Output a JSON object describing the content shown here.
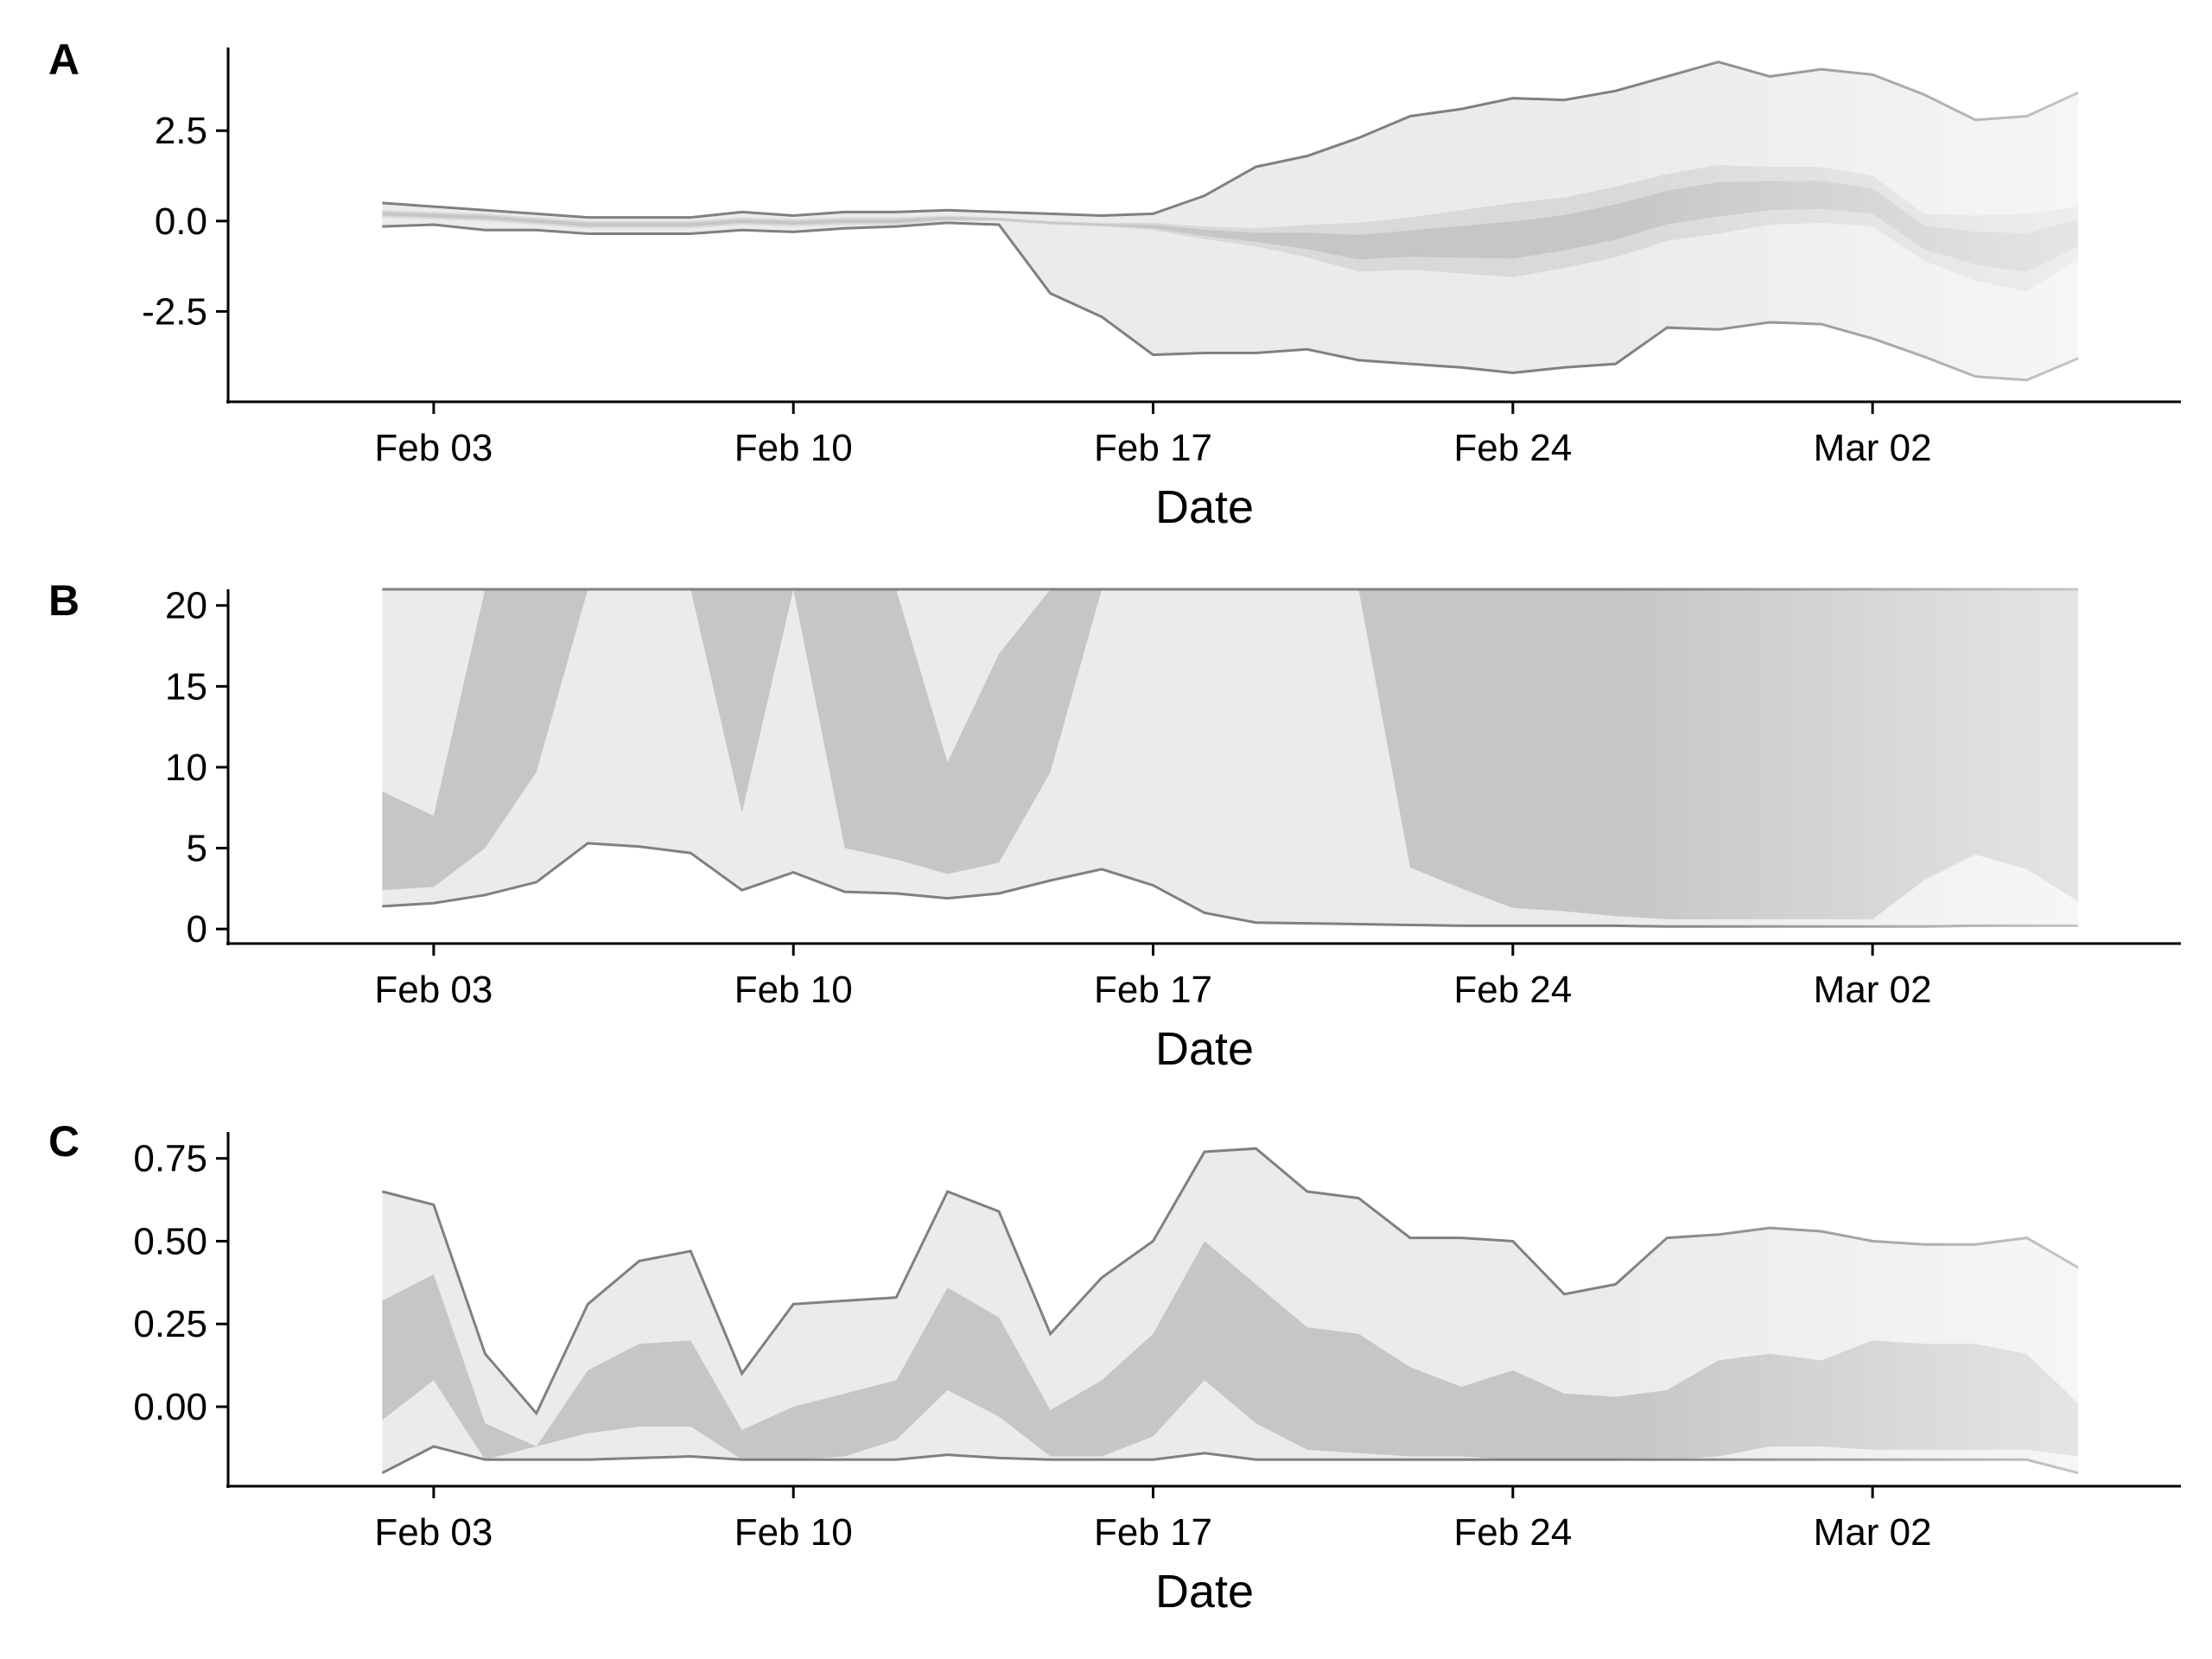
{
  "chart_data": [
    {
      "panel": "A",
      "type": "area",
      "xlabel": "Date",
      "ylabel": "",
      "x_ticks": [
        "Feb 03",
        "Feb 10",
        "Feb 17",
        "Feb 24",
        "Mar 02"
      ],
      "y_ticks": [
        "2.5",
        "0.0",
        "-2.5"
      ],
      "y_tick_values": [
        2.5,
        0.0,
        -2.5
      ],
      "ylim": [
        -5.0,
        4.8
      ],
      "xlim": [
        "2020-01-30",
        "2020-03-08"
      ],
      "grid": false,
      "colors": {
        "outer_band": "#ebebeb",
        "middle_band": "#d9d9d9",
        "inner_band": "#c6c6c6",
        "bound_line": "#808080"
      },
      "series": {
        "dates": [
          "2020-02-02",
          "2020-02-03",
          "2020-02-04",
          "2020-02-05",
          "2020-02-06",
          "2020-02-07",
          "2020-02-08",
          "2020-02-09",
          "2020-02-10",
          "2020-02-11",
          "2020-02-12",
          "2020-02-13",
          "2020-02-14",
          "2020-02-15",
          "2020-02-16",
          "2020-02-17",
          "2020-02-18",
          "2020-02-19",
          "2020-02-20",
          "2020-02-21",
          "2020-02-22",
          "2020-02-23",
          "2020-02-24",
          "2020-02-25",
          "2020-02-26",
          "2020-02-27",
          "2020-02-28",
          "2020-02-29",
          "2020-03-01",
          "2020-03-02",
          "2020-03-03",
          "2020-03-04",
          "2020-03-05",
          "2020-03-06"
        ],
        "upper": [
          0.5,
          0.4,
          0.3,
          0.2,
          0.1,
          0.1,
          0.1,
          0.25,
          0.15,
          0.25,
          0.25,
          0.3,
          0.25,
          0.2,
          0.15,
          0.2,
          0.7,
          1.5,
          1.8,
          2.3,
          2.9,
          3.1,
          3.4,
          3.35,
          3.6,
          4.0,
          4.4,
          4.0,
          4.2,
          4.05,
          3.5,
          2.8,
          2.9,
          3.55
        ],
        "inner_upper": [
          0.3,
          0.25,
          0.2,
          0.1,
          0.0,
          0.0,
          0.0,
          0.1,
          0.05,
          0.1,
          0.1,
          0.15,
          0.1,
          0.0,
          -0.05,
          -0.05,
          -0.15,
          -0.2,
          -0.1,
          -0.05,
          0.1,
          0.3,
          0.5,
          0.65,
          0.95,
          1.3,
          1.55,
          1.5,
          1.5,
          1.25,
          0.2,
          0.15,
          0.2,
          0.4
        ],
        "inner_lower": [
          0.1,
          0.05,
          0.0,
          -0.1,
          -0.2,
          -0.2,
          -0.2,
          -0.1,
          -0.15,
          -0.1,
          -0.1,
          0.0,
          0.0,
          -0.1,
          -0.15,
          -0.25,
          -0.5,
          -0.7,
          -1.0,
          -1.4,
          -1.35,
          -1.45,
          -1.55,
          -1.3,
          -1.0,
          -0.55,
          -0.35,
          -0.1,
          -0.05,
          -0.15,
          -1.1,
          -1.65,
          -1.95,
          -1.05
        ],
        "lower": [
          -0.15,
          -0.1,
          -0.25,
          -0.25,
          -0.35,
          -0.35,
          -0.35,
          -0.25,
          -0.3,
          -0.2,
          -0.15,
          -0.05,
          -0.1,
          -2.0,
          -2.65,
          -3.7,
          -3.65,
          -3.65,
          -3.55,
          -3.85,
          -3.95,
          -4.05,
          -4.2,
          -4.05,
          -3.95,
          -2.95,
          -3.0,
          -2.8,
          -2.85,
          -3.25,
          -3.75,
          -4.3,
          -4.4,
          -3.8
        ]
      }
    },
    {
      "panel": "B",
      "type": "area",
      "xlabel": "Date",
      "ylabel": "",
      "x_ticks": [
        "Feb 03",
        "Feb 10",
        "Feb 17",
        "Feb 24",
        "Mar 02"
      ],
      "y_ticks": [
        "20",
        "15",
        "10",
        "5",
        "0"
      ],
      "y_tick_values": [
        20,
        15,
        10,
        5,
        0
      ],
      "ylim": [
        -0.9,
        21
      ],
      "xlim": [
        "2020-01-30",
        "2020-03-08"
      ],
      "grid": false,
      "colors": {
        "outer_band": "#ebebeb",
        "inner_band": "#c6c6c6",
        "bound_line": "#808080"
      },
      "series": {
        "dates": [
          "2020-02-02",
          "2020-02-03",
          "2020-02-04",
          "2020-02-05",
          "2020-02-06",
          "2020-02-07",
          "2020-02-08",
          "2020-02-09",
          "2020-02-10",
          "2020-02-11",
          "2020-02-12",
          "2020-02-13",
          "2020-02-14",
          "2020-02-15",
          "2020-02-16",
          "2020-02-17",
          "2020-02-18",
          "2020-02-19",
          "2020-02-20",
          "2020-02-21",
          "2020-02-22",
          "2020-02-23",
          "2020-02-24",
          "2020-02-25",
          "2020-02-26",
          "2020-02-27",
          "2020-02-28",
          "2020-02-29",
          "2020-03-01",
          "2020-03-02",
          "2020-03-03",
          "2020-03-04",
          "2020-03-05",
          "2020-03-06"
        ],
        "upper": [
          21,
          21,
          21,
          21,
          21,
          21,
          21,
          21,
          21,
          21,
          21,
          21,
          21,
          21,
          21,
          21,
          21,
          21,
          21,
          21,
          21,
          21,
          21,
          21,
          21,
          21,
          21,
          21,
          21,
          21,
          21,
          21,
          21,
          21
        ],
        "inner_upper": [
          8.5,
          7.0,
          21,
          21,
          21,
          21,
          21,
          7.2,
          21,
          21,
          21,
          10.3,
          17.0,
          21,
          21,
          21,
          21,
          21,
          21,
          21,
          21,
          21,
          21,
          21,
          21,
          21,
          21,
          21,
          21,
          21,
          21,
          21,
          21,
          21
        ],
        "inner_lower": [
          2.4,
          2.6,
          5.0,
          9.7,
          21,
          21,
          21,
          21,
          21,
          5.0,
          4.3,
          3.4,
          4.1,
          9.7,
          21,
          21,
          21,
          21,
          21,
          21,
          3.8,
          2.5,
          1.3,
          1.1,
          0.8,
          0.6,
          0.6,
          0.6,
          0.6,
          0.6,
          3.0,
          4.6,
          3.7,
          1.7
        ],
        "lower": [
          1.4,
          1.6,
          2.1,
          2.9,
          5.3,
          5.1,
          4.7,
          2.4,
          3.5,
          2.3,
          2.2,
          1.9,
          2.2,
          3.0,
          3.7,
          2.7,
          1.0,
          0.4,
          0.35,
          0.3,
          0.25,
          0.2,
          0.2,
          0.2,
          0.2,
          0.15,
          0.15,
          0.15,
          0.15,
          0.15,
          0.15,
          0.2,
          0.2,
          0.2
        ]
      }
    },
    {
      "panel": "C",
      "type": "area",
      "xlabel": "Date",
      "ylabel": "",
      "x_ticks": [
        "Feb 03",
        "Feb 10",
        "Feb 17",
        "Feb 24",
        "Mar 02"
      ],
      "y_ticks": [
        "0.75",
        "0.50",
        "0.25",
        "0.00"
      ],
      "y_tick_values": [
        0.75,
        0.5,
        0.25,
        0.0
      ],
      "ylim": [
        -0.24,
        0.83
      ],
      "xlim": [
        "2020-01-30",
        "2020-03-08"
      ],
      "grid": false,
      "colors": {
        "outer_band": "#ebebeb",
        "inner_band": "#c6c6c6",
        "bound_line": "#808080"
      },
      "series": {
        "dates": [
          "2020-02-02",
          "2020-02-03",
          "2020-02-04",
          "2020-02-05",
          "2020-02-06",
          "2020-02-07",
          "2020-02-08",
          "2020-02-09",
          "2020-02-10",
          "2020-02-11",
          "2020-02-12",
          "2020-02-13",
          "2020-02-14",
          "2020-02-15",
          "2020-02-16",
          "2020-02-17",
          "2020-02-18",
          "2020-02-19",
          "2020-02-20",
          "2020-02-21",
          "2020-02-22",
          "2020-02-23",
          "2020-02-24",
          "2020-02-25",
          "2020-02-26",
          "2020-02-27",
          "2020-02-28",
          "2020-02-29",
          "2020-03-01",
          "2020-03-02",
          "2020-03-03",
          "2020-03-04",
          "2020-03-05",
          "2020-03-06"
        ],
        "upper": [
          0.65,
          0.61,
          0.16,
          -0.02,
          0.31,
          0.44,
          0.47,
          0.1,
          0.31,
          0.32,
          0.33,
          0.65,
          0.59,
          0.22,
          0.39,
          0.5,
          0.77,
          0.78,
          0.65,
          0.63,
          0.51,
          0.51,
          0.5,
          0.34,
          0.37,
          0.51,
          0.52,
          0.54,
          0.53,
          0.5,
          0.49,
          0.49,
          0.51,
          0.42
        ],
        "inner_upper": [
          0.32,
          0.4,
          -0.05,
          -0.12,
          0.11,
          0.19,
          0.2,
          -0.07,
          0.0,
          0.04,
          0.08,
          0.36,
          0.27,
          -0.01,
          0.08,
          0.22,
          0.5,
          0.37,
          0.24,
          0.22,
          0.12,
          0.06,
          0.11,
          0.04,
          0.03,
          0.05,
          0.14,
          0.16,
          0.14,
          0.2,
          0.19,
          0.19,
          0.16,
          0.01
        ],
        "inner_lower": [
          -0.04,
          0.08,
          -0.16,
          -0.12,
          -0.08,
          -0.06,
          -0.06,
          -0.16,
          -0.16,
          -0.15,
          -0.1,
          0.05,
          -0.03,
          -0.15,
          -0.15,
          -0.09,
          0.08,
          -0.05,
          -0.13,
          -0.14,
          -0.15,
          -0.15,
          -0.16,
          -0.16,
          -0.16,
          -0.16,
          -0.15,
          -0.12,
          -0.12,
          -0.13,
          -0.13,
          -0.13,
          -0.13,
          -0.15
        ],
        "lower": [
          -0.2,
          -0.12,
          -0.16,
          -0.16,
          -0.16,
          -0.155,
          -0.15,
          -0.16,
          -0.16,
          -0.16,
          -0.16,
          -0.145,
          -0.155,
          -0.16,
          -0.16,
          -0.16,
          -0.14,
          -0.16,
          -0.16,
          -0.16,
          -0.16,
          -0.16,
          -0.16,
          -0.16,
          -0.16,
          -0.16,
          -0.16,
          -0.16,
          -0.16,
          -0.16,
          -0.16,
          -0.16,
          -0.16,
          -0.2
        ]
      }
    }
  ]
}
